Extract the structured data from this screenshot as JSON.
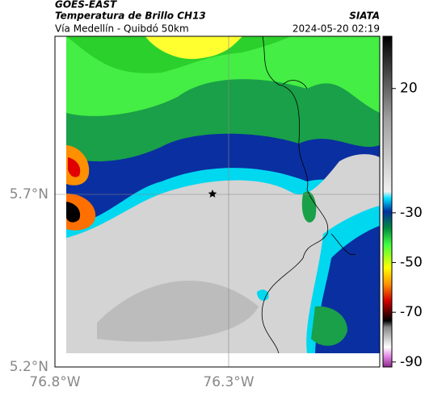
{
  "header": {
    "source": "GOES-EAST",
    "title": "Temperatura de Brillo CH13",
    "subtitle": "Vía Medellín - Quibdó 50km",
    "org": "SIATA",
    "datetime": "2024-05-20 02:19"
  },
  "map": {
    "lat_labels": [
      "5.7°N",
      "5.2°N"
    ],
    "lon_labels": [
      "76.8°W",
      "76.3°W"
    ]
  },
  "colorbar": {
    "range": [
      -92,
      41
    ],
    "ticks": [
      20,
      -30,
      -50,
      -70,
      -90
    ]
  }
}
